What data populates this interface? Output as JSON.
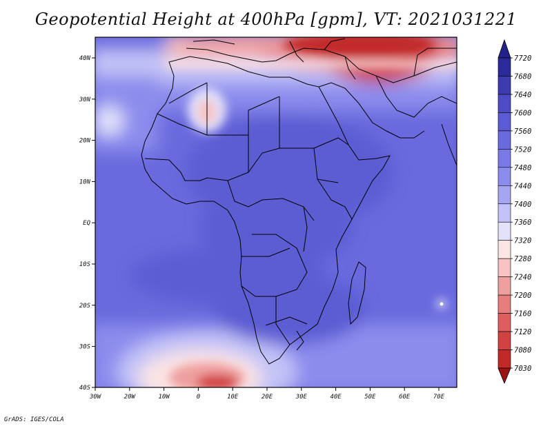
{
  "title": "Geopotential Height at 400hPa [gpm], VT: 2021031221",
  "credit": "GrADS: IGES/COLA",
  "map": {
    "lat_labels": [
      "40N",
      "30N",
      "20N",
      "10N",
      "EQ",
      "10S",
      "20S",
      "30S",
      "40S"
    ],
    "lon_labels": [
      "30W",
      "20W",
      "10W",
      "0",
      "10E",
      "20E",
      "30E",
      "40E",
      "50E",
      "60E",
      "70E"
    ]
  },
  "colorbar": {
    "labels": [
      "7720",
      "7680",
      "7640",
      "7600",
      "7560",
      "7520",
      "7480",
      "7440",
      "7400",
      "7360",
      "7320",
      "7280",
      "7240",
      "7200",
      "7160",
      "7120",
      "7080",
      "7030"
    ],
    "colors": [
      "#2b2a9a",
      "#3c3bb0",
      "#4d4cc4",
      "#5b5bd3",
      "#6a6ade",
      "#7a7ae6",
      "#8c8ced",
      "#a5a5f2",
      "#c3c3f7",
      "#e2e2fb",
      "#fbe4e4",
      "#f6c2c2",
      "#ef9f9f",
      "#e77e7e",
      "#de5e5e",
      "#d24242",
      "#c22a2a",
      "#aa1a1a"
    ],
    "top_color": "#23228a",
    "bottom_color": "#9a1414"
  },
  "colors": {
    "land_outline": "#000000",
    "frame": "#000000"
  }
}
